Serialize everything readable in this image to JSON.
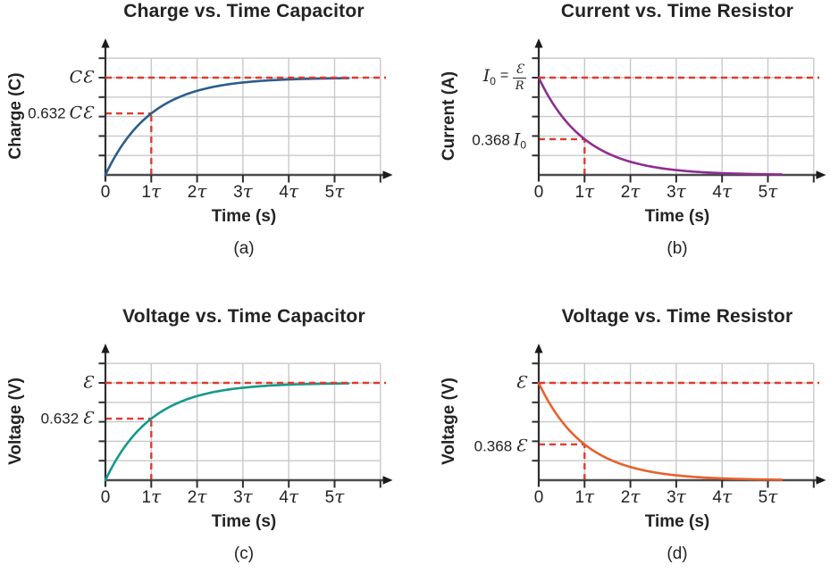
{
  "figure": {
    "background": "#ffffff",
    "text_color": "#232323",
    "grid_color": "#c8c8c9",
    "axis_color": "#4b4b4d",
    "dashed_line_color": "#df3b2d"
  },
  "chart_data": [
    {
      "id": "a",
      "type": "line",
      "title": "Charge vs. Time Capacitor",
      "xlabel": "Time (s)",
      "ylabel": "Charge (C)",
      "caption": "(a)",
      "direction": "rising",
      "curve": "1 − e^(−t/τ)",
      "color": "#2d5c8c",
      "x_ticks": [
        {
          "n": "0",
          "s": ""
        },
        {
          "n": "1",
          "s": "τ"
        },
        {
          "n": "2",
          "s": "τ"
        },
        {
          "n": "3",
          "s": "τ"
        },
        {
          "n": "4",
          "s": "τ"
        },
        {
          "n": "5",
          "s": "τ"
        }
      ],
      "x_range_tau": [
        0,
        6
      ],
      "asymptote": {
        "label": "CƐ",
        "value_norm": 1.0
      },
      "key_point": {
        "t_label": "1τ",
        "num": "0.632",
        "var": "CƐ",
        "value_norm": 0.632
      }
    },
    {
      "id": "b",
      "type": "line",
      "title": "Current vs. Time Resistor",
      "xlabel": "Time (s)",
      "ylabel": "Current (A)",
      "caption": "(b)",
      "direction": "decaying",
      "curve": "e^(−t/τ)",
      "color": "#8e2d8f",
      "x_ticks": [
        {
          "n": "0",
          "s": ""
        },
        {
          "n": "1",
          "s": "τ"
        },
        {
          "n": "2",
          "s": "τ"
        },
        {
          "n": "3",
          "s": "τ"
        },
        {
          "n": "4",
          "s": "τ"
        },
        {
          "n": "5",
          "s": "τ"
        }
      ],
      "x_range_tau": [
        0,
        6
      ],
      "asymptote": {
        "lhs": "I",
        "lhs_sub": "0",
        "eq": "=",
        "frac_num": "Ɛ",
        "frac_den": "R",
        "value_norm": 1.0
      },
      "key_point": {
        "t_label": "1τ",
        "num": "0.368",
        "var": "I",
        "var_sub": "0",
        "value_norm": 0.368
      }
    },
    {
      "id": "c",
      "type": "line",
      "title": "Voltage vs. Time Capacitor",
      "xlabel": "Time (s)",
      "ylabel": "Voltage (V)",
      "caption": "(c)",
      "direction": "rising",
      "curve": "1 − e^(−t/τ)",
      "color": "#14998c",
      "x_ticks": [
        {
          "n": "0",
          "s": ""
        },
        {
          "n": "1",
          "s": "τ"
        },
        {
          "n": "2",
          "s": "τ"
        },
        {
          "n": "3",
          "s": "τ"
        },
        {
          "n": "4",
          "s": "τ"
        },
        {
          "n": "5",
          "s": "τ"
        }
      ],
      "x_range_tau": [
        0,
        6
      ],
      "asymptote": {
        "label": "Ɛ",
        "value_norm": 1.0
      },
      "key_point": {
        "t_label": "1τ",
        "num": "0.632",
        "var": "Ɛ",
        "value_norm": 0.632
      }
    },
    {
      "id": "d",
      "type": "line",
      "title": "Voltage vs. Time Resistor",
      "xlabel": "Time (s)",
      "ylabel": "Voltage (V)",
      "caption": "(d)",
      "direction": "decaying",
      "curve": "e^(−t/τ)",
      "color": "#e7612d",
      "x_ticks": [
        {
          "n": "0",
          "s": ""
        },
        {
          "n": "1",
          "s": "τ"
        },
        {
          "n": "2",
          "s": "τ"
        },
        {
          "n": "3",
          "s": "τ"
        },
        {
          "n": "4",
          "s": "τ"
        },
        {
          "n": "5",
          "s": "τ"
        }
      ],
      "x_range_tau": [
        0,
        6
      ],
      "asymptote": {
        "label": "Ɛ",
        "value_norm": 1.0
      },
      "key_point": {
        "t_label": "1τ",
        "num": "0.368",
        "var": "Ɛ",
        "value_norm": 0.368
      }
    }
  ]
}
